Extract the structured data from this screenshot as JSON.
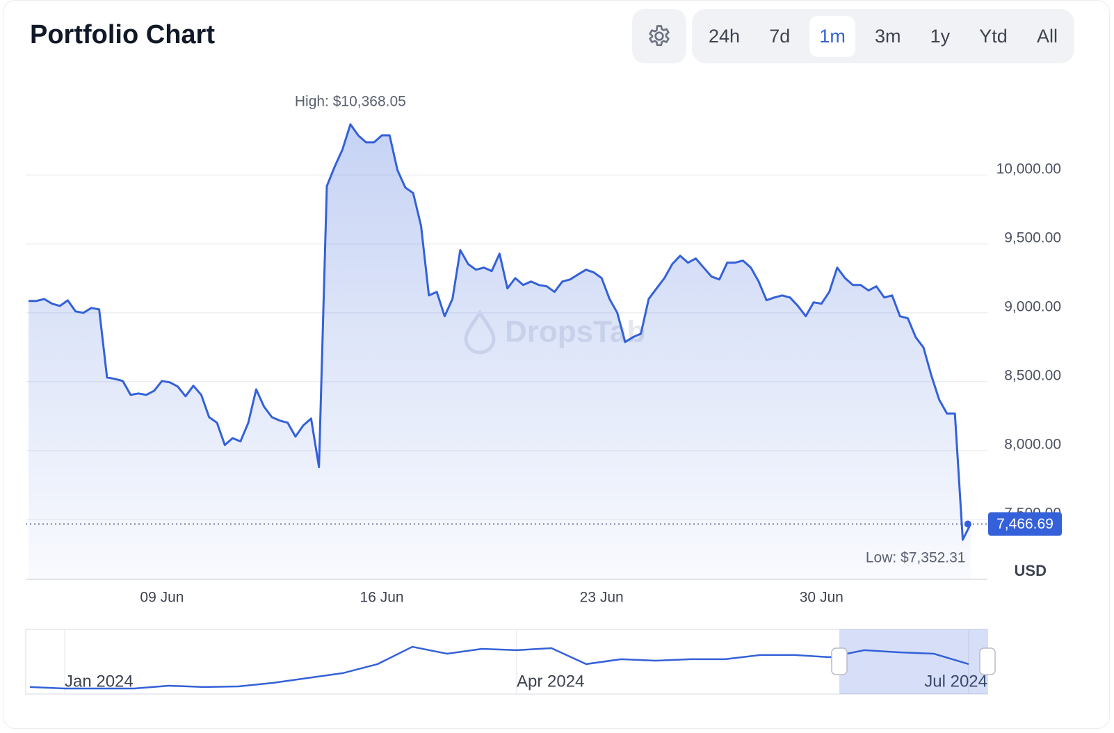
{
  "chart_data": {
    "type": "line",
    "title": "Portfolio Chart",
    "ranges": [
      "24h",
      "7d",
      "1m",
      "3m",
      "1y",
      "Ytd",
      "All"
    ],
    "active_range": 2,
    "color": "#3461d9",
    "unit": "USD",
    "watermark": "DropsTab",
    "annotations": {
      "high": "High: $10,368.05",
      "low": "Low: $7,352.31",
      "last": "7,466.69"
    },
    "categories": [
      null,
      null,
      null,
      null,
      null,
      null,
      null,
      null,
      null,
      null,
      null,
      null,
      null,
      null,
      null,
      null,
      null,
      "09 Jun",
      null,
      null,
      null,
      null,
      null,
      null,
      null,
      null,
      null,
      null,
      null,
      null,
      null,
      null,
      null,
      null,
      null,
      null,
      null,
      null,
      null,
      null,
      null,
      null,
      null,
      null,
      null,
      "16 Jun",
      null,
      null,
      null,
      null,
      null,
      null,
      null,
      null,
      null,
      null,
      null,
      null,
      null,
      null,
      null,
      null,
      null,
      null,
      null,
      null,
      null,
      null,
      null,
      null,
      null,
      null,
      null,
      "23 Jun",
      null,
      null,
      null,
      null,
      null,
      null,
      null,
      null,
      null,
      null,
      null,
      null,
      null,
      null,
      null,
      null,
      null,
      null,
      null,
      null,
      null,
      null,
      null,
      null,
      null,
      null,
      null,
      "30 Jun",
      null,
      null,
      null,
      null,
      null,
      null,
      null,
      null,
      null,
      null,
      null,
      null,
      null,
      null,
      null,
      null,
      null,
      null,
      null
    ],
    "values": [
      9086,
      9086,
      9100,
      9066,
      9050,
      9090,
      9010,
      9000,
      9035,
      9025,
      8530,
      8520,
      8505,
      8404,
      8414,
      8404,
      8434,
      8505,
      8495,
      8465,
      8394,
      8470,
      8404,
      8242,
      8202,
      8040,
      8090,
      8066,
      8202,
      8444,
      8318,
      8242,
      8217,
      8202,
      8101,
      8182,
      8232,
      7880,
      9919,
      10061,
      10187,
      10368.05,
      10288,
      10237,
      10237,
      10288,
      10288,
      10035,
      9909,
      9869,
      9631,
      9126,
      9152,
      8975,
      9101,
      9455,
      9354,
      9313,
      9328,
      9303,
      9429,
      9177,
      9252,
      9202,
      9227,
      9202,
      9192,
      9152,
      9227,
      9242,
      9278,
      9313,
      9293,
      9252,
      9101,
      9000,
      8788,
      8823,
      8848,
      9101,
      9177,
      9252,
      9354,
      9414,
      9364,
      9394,
      9328,
      9263,
      9242,
      9364,
      9364,
      9379,
      9328,
      9227,
      9091,
      9111,
      9126,
      9111,
      9050,
      8975,
      9076,
      9066,
      9152,
      9328,
      9252,
      9202,
      9202,
      9162,
      9192,
      9111,
      9126,
      8975,
      8960,
      8823,
      8747,
      8545,
      8369,
      8268,
      8268,
      7352.31,
      7466.69
    ],
    "ylim": [
      7065,
      10665
    ],
    "yticks": [
      {
        "value": 7500,
        "label": "7,500.00"
      },
      {
        "value": 8000,
        "label": "8,000.00"
      },
      {
        "value": 8500,
        "label": "8,500.00"
      },
      {
        "value": 9000,
        "label": "9,000.00"
      },
      {
        "value": 9500,
        "label": "9,500.00"
      },
      {
        "value": 10000,
        "label": "10,000.00"
      }
    ],
    "grid": true,
    "navigator": {
      "categories": [
        null,
        "Jan 2024",
        null,
        null,
        null,
        null,
        null,
        null,
        null,
        null,
        null,
        null,
        null,
        null,
        "Apr 2024",
        null,
        null,
        null,
        null,
        null,
        null,
        null,
        null,
        null,
        null,
        null,
        null,
        "Jul 2024"
      ],
      "values": [
        5480,
        5315,
        5315,
        5315,
        5640,
        5480,
        5560,
        5970,
        6540,
        7110,
        8170,
        10200,
        9390,
        9960,
        9800,
        10040,
        8170,
        8740,
        8575,
        8740,
        8740,
        9230,
        9230,
        8980,
        9800,
        9550,
        9390,
        8170
      ],
      "ylim": [
        4660,
        12240
      ]
    }
  }
}
